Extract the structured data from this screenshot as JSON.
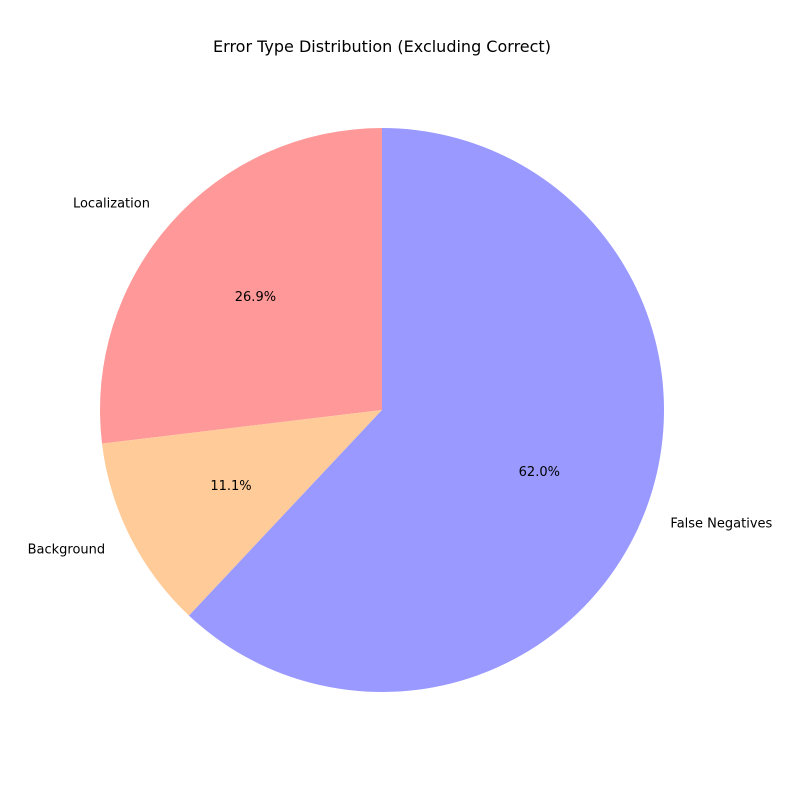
{
  "chart_data": {
    "type": "pie",
    "title": "Error Type Distribution (Excluding Correct)",
    "start_angle_deg": 90,
    "direction": "counterclockwise",
    "slices": [
      {
        "label": "Localization",
        "value": 26.9,
        "pct_label": "26.9%",
        "color": "#ff9999"
      },
      {
        "label": "Background",
        "value": 11.1,
        "pct_label": "11.1%",
        "color": "#ffcc99"
      },
      {
        "label": "False Negatives",
        "value": 62.0,
        "pct_label": "62.0%",
        "color": "#9999ff"
      }
    ]
  }
}
